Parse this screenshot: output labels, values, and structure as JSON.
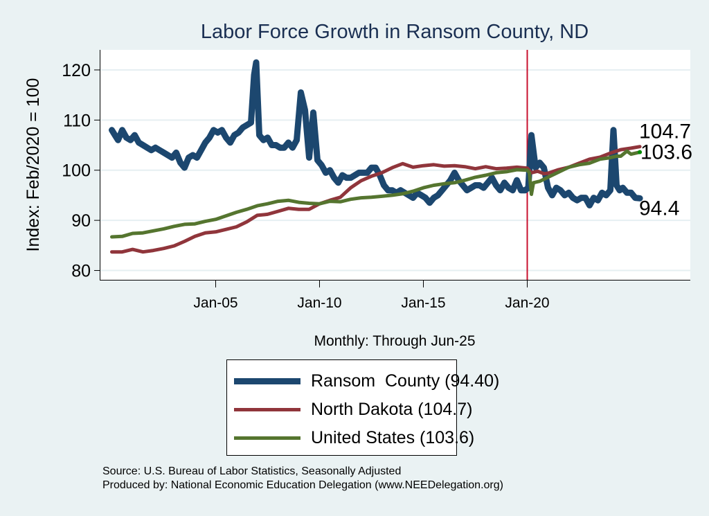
{
  "chart_data": {
    "type": "line",
    "title": "Labor Force Growth in Ransom  County, ND",
    "xlabel": "Monthly: Through Jun-25",
    "ylabel": "Index: Feb/2020 = 100",
    "ylim": [
      78,
      124
    ],
    "xlim": [
      1999.45,
      2027.85
    ],
    "yticks": [
      80,
      90,
      100,
      110,
      120
    ],
    "xticks": [
      {
        "value": 2005,
        "label": "Jan-05"
      },
      {
        "value": 2010,
        "label": "Jan-10"
      },
      {
        "value": 2015,
        "label": "Jan-15"
      },
      {
        "value": 2020,
        "label": "Jan-20"
      }
    ],
    "grid": true,
    "reference_line": {
      "x": 2020.0,
      "color": "#c8102e"
    },
    "legend_position": "bottom",
    "series": [
      {
        "name": "Ransom  County",
        "legend_label": "Ransom  County (94.40)",
        "end_label": "94.4",
        "color": "#1c476f",
        "x": [
          2000.0,
          2000.15,
          2000.3,
          2000.5,
          2000.7,
          2000.9,
          2001.1,
          2001.3,
          2001.5,
          2001.7,
          2001.9,
          2002.1,
          2002.3,
          2002.5,
          2002.7,
          2002.9,
          2003.1,
          2003.3,
          2003.5,
          2003.7,
          2003.9,
          2004.1,
          2004.3,
          2004.5,
          2004.7,
          2004.9,
          2005.1,
          2005.3,
          2005.5,
          2005.7,
          2005.9,
          2006.1,
          2006.3,
          2006.5,
          2006.7,
          2006.85,
          2006.95,
          2007.1,
          2007.3,
          2007.5,
          2007.7,
          2007.9,
          2008.1,
          2008.3,
          2008.5,
          2008.7,
          2008.9,
          2009.1,
          2009.3,
          2009.5,
          2009.7,
          2009.9,
          2010.1,
          2010.3,
          2010.5,
          2010.7,
          2010.9,
          2011.1,
          2011.3,
          2011.5,
          2011.7,
          2011.9,
          2012.1,
          2012.3,
          2012.5,
          2012.7,
          2012.9,
          2013.1,
          2013.3,
          2013.5,
          2013.7,
          2013.9,
          2014.1,
          2014.3,
          2014.5,
          2014.7,
          2014.9,
          2015.1,
          2015.3,
          2015.5,
          2015.7,
          2015.9,
          2016.1,
          2016.3,
          2016.5,
          2016.7,
          2016.9,
          2017.1,
          2017.3,
          2017.5,
          2017.7,
          2017.9,
          2018.1,
          2018.3,
          2018.5,
          2018.7,
          2018.9,
          2019.1,
          2019.3,
          2019.5,
          2019.7,
          2019.9,
          2020.05,
          2020.2,
          2020.4,
          2020.6,
          2020.8,
          2021.0,
          2021.2,
          2021.4,
          2021.6,
          2021.8,
          2022.0,
          2022.2,
          2022.4,
          2022.6,
          2022.8,
          2023.0,
          2023.2,
          2023.4,
          2023.6,
          2023.8,
          2024.0,
          2024.15,
          2024.3,
          2024.45,
          2024.6,
          2024.8,
          2025.0,
          2025.2,
          2025.42
        ],
        "y": [
          108.0,
          107.0,
          106.0,
          108.0,
          106.5,
          106.0,
          107.0,
          105.5,
          105.0,
          104.5,
          104.0,
          104.5,
          104.0,
          103.5,
          103.0,
          102.5,
          103.5,
          101.5,
          100.5,
          102.5,
          103.0,
          102.5,
          104.0,
          105.5,
          106.5,
          108.0,
          107.5,
          108.0,
          106.5,
          105.5,
          107.0,
          107.5,
          108.5,
          109.0,
          109.5,
          119.0,
          121.5,
          107.0,
          106.0,
          106.5,
          105.0,
          105.0,
          104.5,
          104.5,
          105.5,
          104.5,
          106.0,
          115.5,
          112.0,
          102.5,
          111.5,
          102.0,
          101.0,
          99.5,
          100.0,
          98.5,
          97.5,
          99.0,
          98.5,
          98.5,
          99.0,
          99.5,
          99.5,
          99.5,
          100.5,
          100.5,
          99.0,
          97.0,
          96.0,
          96.0,
          95.5,
          96.0,
          95.5,
          95.0,
          94.5,
          95.5,
          95.0,
          94.5,
          93.5,
          94.5,
          95.0,
          96.0,
          97.0,
          98.0,
          99.5,
          98.0,
          97.0,
          96.0,
          96.5,
          97.0,
          97.0,
          96.5,
          97.5,
          98.5,
          97.0,
          96.0,
          97.5,
          96.5,
          96.0,
          98.0,
          96.0,
          96.0,
          96.5,
          107.0,
          100.5,
          101.5,
          100.5,
          96.5,
          95.0,
          96.5,
          96.0,
          95.0,
          95.5,
          94.5,
          94.0,
          94.5,
          94.5,
          93.0,
          94.5,
          94.0,
          95.5,
          95.0,
          96.0,
          108.0,
          97.0,
          96.0,
          96.5,
          95.5,
          95.5,
          94.5,
          94.4
        ]
      },
      {
        "name": "North Dakota",
        "legend_label": "North Dakota (104.7)",
        "end_label": "104.7",
        "color": "#90353b",
        "x": [
          2000.0,
          2000.5,
          2001.0,
          2001.5,
          2002.0,
          2002.5,
          2003.0,
          2003.5,
          2004.0,
          2004.5,
          2005.0,
          2005.5,
          2006.0,
          2006.5,
          2007.0,
          2007.5,
          2008.0,
          2008.5,
          2009.0,
          2009.5,
          2010.0,
          2010.5,
          2011.0,
          2011.5,
          2012.0,
          2012.5,
          2013.0,
          2013.5,
          2014.0,
          2014.5,
          2015.0,
          2015.5,
          2016.0,
          2016.5,
          2017.0,
          2017.5,
          2018.0,
          2018.5,
          2019.0,
          2019.5,
          2020.0,
          2020.2,
          2020.5,
          2020.8,
          2021.0,
          2021.5,
          2022.0,
          2022.5,
          2023.0,
          2023.5,
          2024.0,
          2024.5,
          2025.0,
          2025.42
        ],
        "y": [
          83.7,
          83.7,
          84.2,
          83.7,
          84.0,
          84.4,
          84.9,
          85.8,
          86.8,
          87.5,
          87.7,
          88.2,
          88.7,
          89.7,
          91.0,
          91.2,
          91.8,
          92.4,
          92.2,
          92.2,
          93.3,
          94.0,
          94.6,
          96.5,
          97.9,
          98.8,
          99.5,
          100.5,
          101.3,
          100.6,
          100.9,
          101.1,
          100.8,
          100.9,
          100.7,
          100.3,
          100.7,
          100.3,
          100.4,
          100.6,
          100.4,
          99.5,
          99.8,
          99.3,
          99.4,
          100.1,
          100.6,
          101.4,
          102.2,
          102.6,
          103.4,
          104.1,
          104.4,
          104.7
        ]
      },
      {
        "name": "United States",
        "legend_label": "United States (103.6)",
        "end_label": "103.6",
        "color": "#55752f",
        "x": [
          2000.0,
          2000.5,
          2001.0,
          2001.5,
          2002.0,
          2002.5,
          2003.0,
          2003.5,
          2004.0,
          2004.5,
          2005.0,
          2005.5,
          2006.0,
          2006.5,
          2007.0,
          2007.5,
          2008.0,
          2008.5,
          2009.0,
          2009.5,
          2010.0,
          2010.5,
          2011.0,
          2011.5,
          2012.0,
          2012.5,
          2013.0,
          2013.5,
          2014.0,
          2014.5,
          2015.0,
          2015.5,
          2016.0,
          2016.5,
          2017.0,
          2017.5,
          2018.0,
          2018.5,
          2019.0,
          2019.5,
          2020.0,
          2020.1,
          2020.2,
          2020.3,
          2020.6,
          2021.0,
          2021.5,
          2022.0,
          2022.5,
          2023.0,
          2023.5,
          2024.0,
          2024.3,
          2024.5,
          2024.8,
          2025.0,
          2025.42
        ],
        "y": [
          86.7,
          86.8,
          87.4,
          87.5,
          87.9,
          88.3,
          88.8,
          89.2,
          89.3,
          89.8,
          90.2,
          90.9,
          91.6,
          92.2,
          92.9,
          93.3,
          93.8,
          94.0,
          93.6,
          93.4,
          93.3,
          93.8,
          93.7,
          94.2,
          94.5,
          94.6,
          94.8,
          95.0,
          95.3,
          95.8,
          96.5,
          97.0,
          97.3,
          97.5,
          98.0,
          98.6,
          99.0,
          99.5,
          99.7,
          100.1,
          100.0,
          99.5,
          95.2,
          97.5,
          97.8,
          98.6,
          99.6,
          100.6,
          101.1,
          101.4,
          102.2,
          102.5,
          102.8,
          102.8,
          103.8,
          103.2,
          103.6
        ]
      }
    ],
    "end_marker_color": "#008a00"
  },
  "notes": {
    "source": "Source: U.S. Bureau of Labor Statistics, Seasonally Adjusted",
    "produced": "Produced by: National Economic Education Delegation (www.NEEDelegation.org)"
  }
}
